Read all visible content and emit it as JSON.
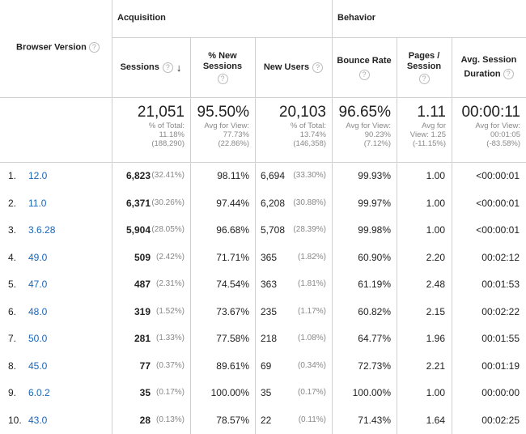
{
  "headers": {
    "dimension": "Browser Version",
    "group_acquisition": "Acquisition",
    "group_behavior": "Behavior",
    "sessions": "Sessions",
    "new_sessions_1": "% New",
    "new_sessions_2": "Sessions",
    "new_users": "New Users",
    "bounce_rate": "Bounce Rate",
    "pages_1": "Pages /",
    "pages_2": "Session",
    "duration_1": "Avg. Session",
    "duration_2": "Duration",
    "help": "?",
    "sort": "↓"
  },
  "summary": {
    "sessions": {
      "value": "21,051",
      "l1": "% of Total:",
      "l2": "11.18%",
      "l3": "(188,290)"
    },
    "new_sessions": {
      "value": "95.50%",
      "l1": "Avg for View:",
      "l2": "77.73%",
      "l3": "(22.86%)"
    },
    "new_users": {
      "value": "20,103",
      "l1": "% of Total:",
      "l2": "13.74%",
      "l3": "(146,358)"
    },
    "bounce_rate": {
      "value": "96.65%",
      "l1": "Avg for View:",
      "l2": "90.23%",
      "l3": "(7.12%)"
    },
    "pages": {
      "value": "1.11",
      "l1": "Avg for",
      "l2": "View: 1.25",
      "l3": "(-11.15%)"
    },
    "duration": {
      "value": "00:00:11",
      "l1": "Avg for View:",
      "l2": "00:01:05",
      "l3": "(-83.58%)"
    }
  },
  "rows": [
    {
      "idx": "1.",
      "browser": "12.0",
      "sessions": "6,823",
      "sessions_pct": "(32.41%)",
      "new_sessions": "98.11%",
      "new_users": "6,694",
      "new_users_pct": "(33.30%)",
      "bounce": "99.93%",
      "pages": "1.00",
      "duration": "<00:00:01"
    },
    {
      "idx": "2.",
      "browser": "11.0",
      "sessions": "6,371",
      "sessions_pct": "(30.26%)",
      "new_sessions": "97.44%",
      "new_users": "6,208",
      "new_users_pct": "(30.88%)",
      "bounce": "99.97%",
      "pages": "1.00",
      "duration": "<00:00:01"
    },
    {
      "idx": "3.",
      "browser": "3.6.28",
      "sessions": "5,904",
      "sessions_pct": "(28.05%)",
      "new_sessions": "96.68%",
      "new_users": "5,708",
      "new_users_pct": "(28.39%)",
      "bounce": "99.98%",
      "pages": "1.00",
      "duration": "<00:00:01"
    },
    {
      "idx": "4.",
      "browser": "49.0",
      "sessions": "509",
      "sessions_pct": "(2.42%)",
      "new_sessions": "71.71%",
      "new_users": "365",
      "new_users_pct": "(1.82%)",
      "bounce": "60.90%",
      "pages": "2.20",
      "duration": "00:02:12"
    },
    {
      "idx": "5.",
      "browser": "47.0",
      "sessions": "487",
      "sessions_pct": "(2.31%)",
      "new_sessions": "74.54%",
      "new_users": "363",
      "new_users_pct": "(1.81%)",
      "bounce": "61.19%",
      "pages": "2.48",
      "duration": "00:01:53"
    },
    {
      "idx": "6.",
      "browser": "48.0",
      "sessions": "319",
      "sessions_pct": "(1.52%)",
      "new_sessions": "73.67%",
      "new_users": "235",
      "new_users_pct": "(1.17%)",
      "bounce": "60.82%",
      "pages": "2.15",
      "duration": "00:02:22"
    },
    {
      "idx": "7.",
      "browser": "50.0",
      "sessions": "281",
      "sessions_pct": "(1.33%)",
      "new_sessions": "77.58%",
      "new_users": "218",
      "new_users_pct": "(1.08%)",
      "bounce": "64.77%",
      "pages": "1.96",
      "duration": "00:01:55"
    },
    {
      "idx": "8.",
      "browser": "45.0",
      "sessions": "77",
      "sessions_pct": "(0.37%)",
      "new_sessions": "89.61%",
      "new_users": "69",
      "new_users_pct": "(0.34%)",
      "bounce": "72.73%",
      "pages": "2.21",
      "duration": "00:01:19"
    },
    {
      "idx": "9.",
      "browser": "6.0.2",
      "sessions": "35",
      "sessions_pct": "(0.17%)",
      "new_sessions": "100.00%",
      "new_users": "35",
      "new_users_pct": "(0.17%)",
      "bounce": "100.00%",
      "pages": "1.00",
      "duration": "00:00:00"
    },
    {
      "idx": "10.",
      "browser": "43.0",
      "sessions": "28",
      "sessions_pct": "(0.13%)",
      "new_sessions": "78.57%",
      "new_users": "22",
      "new_users_pct": "(0.11%)",
      "bounce": "71.43%",
      "pages": "1.64",
      "duration": "00:02:25"
    }
  ]
}
